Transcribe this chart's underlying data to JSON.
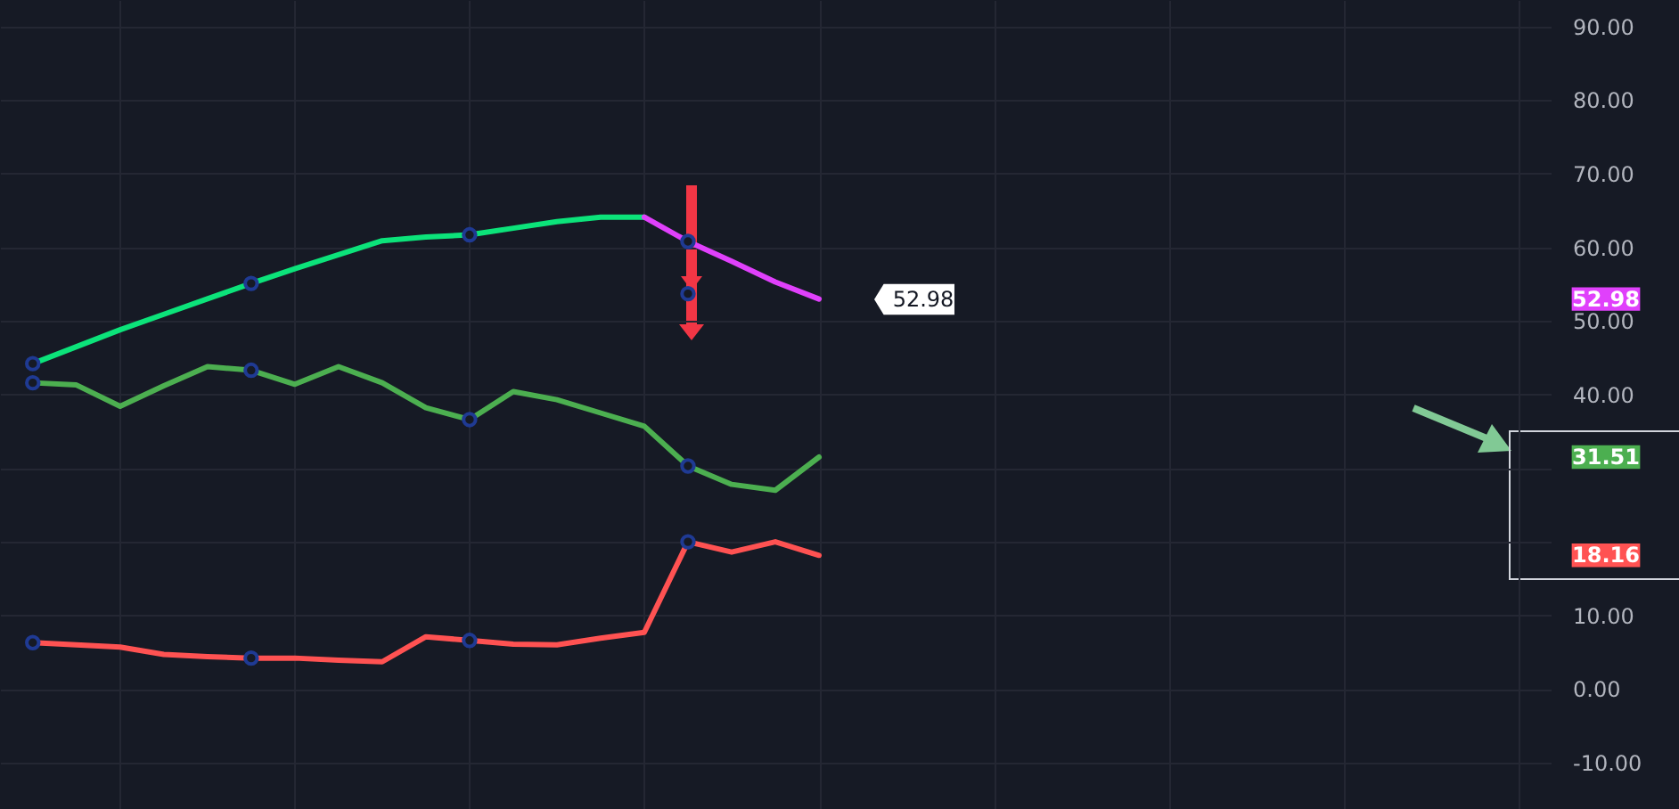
{
  "chart_data": {
    "type": "line",
    "categories": [
      null,
      null,
      null,
      null,
      null,
      null,
      null,
      null,
      null,
      null,
      null,
      null,
      null,
      null,
      null,
      null,
      null,
      null,
      null
    ],
    "series": [
      {
        "color": "#0ce37a",
        "values": [
          44.2,
          46.5,
          48.8,
          50.9,
          53.0,
          55.1,
          57.1,
          59.0,
          60.9,
          61.4,
          61.7,
          62.6,
          63.5,
          64.1,
          64.1,
          null,
          null,
          null,
          null
        ]
      },
      {
        "color": "#e040fb",
        "values": [
          null,
          null,
          null,
          null,
          null,
          null,
          null,
          null,
          null,
          null,
          null,
          null,
          null,
          null,
          64.1,
          60.8,
          58.1,
          55.3,
          52.98
        ]
      },
      {
        "color": "#4caf50",
        "values": [
          41.6,
          41.3,
          38.4,
          41.2,
          43.8,
          43.3,
          41.4,
          43.8,
          41.6,
          38.2,
          36.6,
          40.4,
          39.3,
          37.5,
          35.7,
          30.3,
          27.8,
          27.0,
          31.51
        ]
      },
      {
        "color": "#ff5252",
        "values": [
          6.3,
          6.0,
          5.7,
          4.7,
          4.4,
          4.2,
          4.2,
          3.9,
          3.7,
          7.1,
          6.6,
          6.1,
          6.0,
          6.9,
          7.7,
          20.0,
          18.6,
          20.0,
          18.16
        ]
      },
      {
        "type": "scatter",
        "color": "#1f3a93",
        "values": [
          44.2,
          null,
          null,
          null,
          null,
          55.1,
          null,
          null,
          null,
          null,
          61.7,
          null,
          null,
          null,
          null,
          60.8,
          null,
          null,
          null
        ]
      },
      {
        "type": "scatter",
        "color": "#1f3a93",
        "values": [
          41.6,
          null,
          null,
          null,
          null,
          43.3,
          null,
          null,
          null,
          null,
          36.6,
          null,
          null,
          null,
          null,
          30.3,
          null,
          null,
          null
        ]
      },
      {
        "type": "scatter",
        "color": "#1f3a93",
        "values": [
          6.3,
          null,
          null,
          null,
          null,
          4.2,
          null,
          null,
          null,
          null,
          6.6,
          null,
          null,
          null,
          null,
          20.0,
          null,
          null,
          null
        ]
      },
      {
        "type": "scatter",
        "color": "#1f3a93",
        "values": [
          null,
          null,
          null,
          null,
          null,
          null,
          null,
          null,
          null,
          null,
          null,
          null,
          null,
          null,
          null,
          53.7,
          null,
          null,
          null
        ]
      }
    ],
    "annotations": [
      "52.98",
      "52.98",
      "31.51",
      "18.16"
    ],
    "ylim": [
      -16.3,
      93.6
    ],
    "yticks": [
      {
        "value": -10,
        "label": "-10.00"
      },
      {
        "value": 0,
        "label": "0.00"
      },
      {
        "value": 10,
        "label": "10.00"
      },
      {
        "value": 20,
        "label": null
      },
      {
        "value": 30,
        "label": null
      },
      {
        "value": 40,
        "label": "40.00"
      },
      {
        "value": 50,
        "label": "50.00"
      },
      {
        "value": 60,
        "label": "60.00"
      },
      {
        "value": 70,
        "label": "70.00"
      },
      {
        "value": 80,
        "label": "80.00"
      },
      {
        "value": 90,
        "label": "90.00"
      }
    ],
    "grid": true,
    "tick_labels": "y",
    "line_style": "solid"
  }
}
